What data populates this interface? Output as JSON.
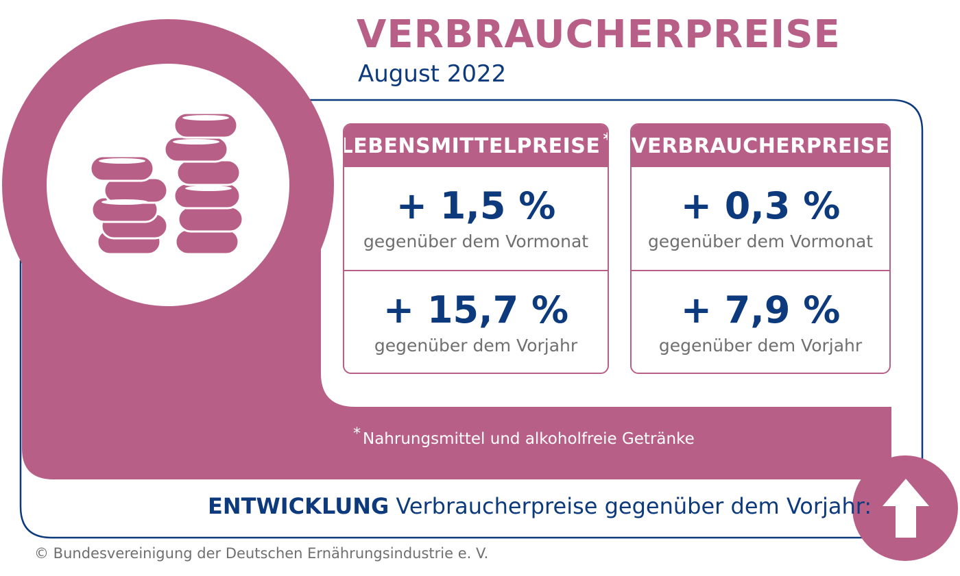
{
  "header": {
    "title": "VERBRAUCHERPREISE",
    "subtitle": "August 2022"
  },
  "colors": {
    "accent": "#b85f88",
    "navy": "#0d3a7d",
    "gray_text": "#6f6f6f"
  },
  "icons": {
    "coins": "coins-icon",
    "trend": "arrow-up-icon"
  },
  "cards": [
    {
      "title": "LEBENSMITTELPREISE",
      "title_marker": "*",
      "monthly_value": "+ 1,5 %",
      "monthly_label": "gegenüber dem Vormonat",
      "yearly_value": "+ 15,7 %",
      "yearly_label": "gegenüber dem Vorjahr"
    },
    {
      "title": "VERBRAUCHERPREISE",
      "title_marker": "",
      "monthly_value": "+ 0,3 %",
      "monthly_label": "gegenüber dem Vormonat",
      "yearly_value": "+ 7,9 %",
      "yearly_label": "gegenüber dem Vorjahr"
    }
  ],
  "footnote": {
    "marker": "*",
    "text": "Nahrungsmittel und alkoholfreie Getränke"
  },
  "development": {
    "prefix": "ENTWICKLUNG",
    "text": " Verbraucherpreise gegenüber dem Vorjahr:"
  },
  "copyright": "© Bundesvereinigung der Deutschen Ernährungsindustrie e. V."
}
